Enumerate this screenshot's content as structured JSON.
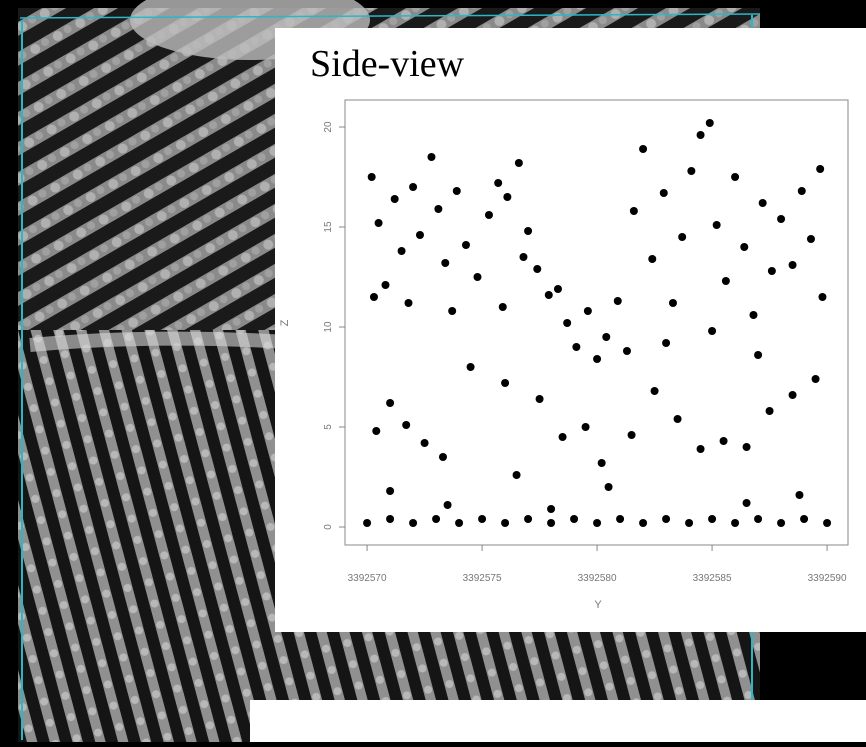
{
  "chart_data": {
    "type": "scatter",
    "title": "Side-view",
    "xlabel": "Y",
    "ylabel": "Z",
    "color": "#000000",
    "x": [
      3392570.2,
      3392570.5,
      3392570.8,
      3392571.2,
      3392571.5,
      3392572.0,
      3392572.3,
      3392572.8,
      3392573.1,
      3392573.4,
      3392573.9,
      3392574.3,
      3392574.8,
      3392575.3,
      3392575.7,
      3392576.1,
      3392576.6,
      3392577.0,
      3392577.4,
      3392577.9,
      3392578.3,
      3392570.3,
      3392571.8,
      3392573.7,
      3392575.9,
      3392576.8,
      3392578.7,
      3392579.1,
      3392579.6,
      3392580.0,
      3392580.4,
      3392580.9,
      3392581.3,
      3392581.6,
      3392582.0,
      3392582.4,
      3392582.9,
      3392583.3,
      3392583.7,
      3392584.1,
      3392584.5,
      3392584.9,
      3392585.2,
      3392585.6,
      3392586.0,
      3392586.4,
      3392586.8,
      3392587.2,
      3392587.6,
      3392588.0,
      3392588.5,
      3392588.9,
      3392589.3,
      3392589.7,
      3392589.8,
      3392585.0,
      3392583.0,
      3392587.0,
      3392570.4,
      3392571.0,
      3392571.7,
      3392572.5,
      3392573.3,
      3392574.5,
      3392576.0,
      3392577.5,
      3392578.5,
      3392579.5,
      3392580.2,
      3392581.5,
      3392582.5,
      3392583.5,
      3392584.5,
      3392585.5,
      3392586.5,
      3392587.5,
      3392588.5,
      3392589.5,
      3392580.5,
      3392576.5,
      3392571.0,
      3392570,
      3392571,
      3392572,
      3392573,
      3392574,
      3392575,
      3392576,
      3392577,
      3392578,
      3392579,
      3392580,
      3392581,
      3392582,
      3392583,
      3392584,
      3392585,
      3392586,
      3392587,
      3392588,
      3392589,
      3392590,
      3392573.5,
      3392578.0,
      3392586.5,
      3392588.8
    ],
    "y": [
      17.5,
      15.2,
      12.1,
      16.4,
      13.8,
      17.0,
      14.6,
      18.5,
      15.9,
      13.2,
      16.8,
      14.1,
      12.5,
      15.6,
      17.2,
      16.5,
      18.2,
      14.8,
      12.9,
      11.6,
      11.9,
      11.5,
      11.2,
      10.8,
      11.0,
      13.5,
      10.2,
      9.0,
      10.8,
      8.4,
      9.5,
      11.3,
      8.8,
      15.8,
      18.9,
      13.4,
      16.7,
      11.2,
      14.5,
      17.8,
      19.6,
      20.2,
      15.1,
      12.3,
      17.5,
      14.0,
      10.6,
      16.2,
      12.8,
      15.4,
      13.1,
      16.8,
      14.4,
      17.9,
      11.5,
      9.8,
      9.2,
      8.6,
      4.8,
      6.2,
      5.1,
      4.2,
      3.5,
      8.0,
      7.2,
      6.4,
      4.5,
      5.0,
      3.2,
      4.6,
      6.8,
      5.4,
      3.9,
      4.3,
      4.0,
      5.8,
      6.6,
      7.4,
      2.0,
      2.6,
      1.8,
      0.2,
      0.4,
      0.2,
      0.4,
      0.2,
      0.4,
      0.2,
      0.4,
      0.2,
      0.4,
      0.2,
      0.4,
      0.2,
      0.4,
      0.2,
      0.4,
      0.2,
      0.4,
      0.2,
      0.4,
      0.2,
      1.1,
      0.9,
      1.2,
      1.6
    ],
    "xlim": [
      3392569.04,
      3392590.91
    ],
    "ylim": [
      -0.9,
      21.35
    ],
    "xticks": [
      3392570,
      3392575,
      3392580,
      3392585,
      3392590
    ],
    "yticks": [
      0,
      5,
      10,
      15,
      20
    ]
  }
}
